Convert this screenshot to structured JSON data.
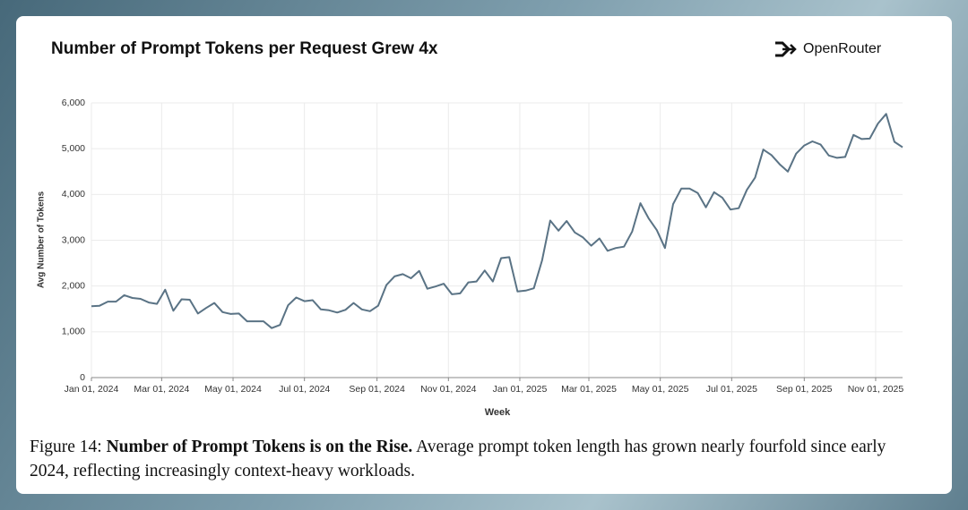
{
  "title": "Number of Prompt Tokens per Request Grew 4x",
  "brand": "OpenRouter",
  "chart_data": {
    "type": "line",
    "x_label": "Week",
    "y_label": "Avg Number of Tokens",
    "x": [
      "2024-01-01",
      "2024-01-08",
      "2024-01-15",
      "2024-01-22",
      "2024-01-29",
      "2024-02-05",
      "2024-02-12",
      "2024-02-19",
      "2024-02-26",
      "2024-03-04",
      "2024-03-11",
      "2024-03-18",
      "2024-03-25",
      "2024-04-01",
      "2024-04-08",
      "2024-04-15",
      "2024-04-22",
      "2024-04-29",
      "2024-05-06",
      "2024-05-13",
      "2024-05-20",
      "2024-05-27",
      "2024-06-03",
      "2024-06-10",
      "2024-06-17",
      "2024-06-24",
      "2024-07-01",
      "2024-07-08",
      "2024-07-15",
      "2024-07-22",
      "2024-07-29",
      "2024-08-05",
      "2024-08-12",
      "2024-08-19",
      "2024-08-26",
      "2024-09-02",
      "2024-09-09",
      "2024-09-16",
      "2024-09-23",
      "2024-09-30",
      "2024-10-07",
      "2024-10-14",
      "2024-10-21",
      "2024-10-28",
      "2024-11-04",
      "2024-11-11",
      "2024-11-18",
      "2024-11-25",
      "2024-12-02",
      "2024-12-09",
      "2024-12-16",
      "2024-12-23",
      "2024-12-30",
      "2025-01-06",
      "2025-01-13",
      "2025-01-20",
      "2025-01-27",
      "2025-02-03",
      "2025-02-10",
      "2025-02-17",
      "2025-02-24",
      "2025-03-03",
      "2025-03-10",
      "2025-03-17",
      "2025-03-24",
      "2025-03-31",
      "2025-04-07",
      "2025-04-14",
      "2025-04-21",
      "2025-04-28",
      "2025-05-05",
      "2025-05-12",
      "2025-05-19",
      "2025-05-26",
      "2025-06-02",
      "2025-06-09",
      "2025-06-16",
      "2025-06-23",
      "2025-06-30",
      "2025-07-07",
      "2025-07-14",
      "2025-07-21",
      "2025-07-28",
      "2025-08-04",
      "2025-08-11",
      "2025-08-18",
      "2025-08-25",
      "2025-09-01",
      "2025-09-08",
      "2025-09-15",
      "2025-09-22",
      "2025-09-29",
      "2025-10-06",
      "2025-10-13",
      "2025-10-20",
      "2025-10-27",
      "2025-11-03",
      "2025-11-10",
      "2025-11-17",
      "2025-11-24"
    ],
    "series": [
      {
        "name": "Avg Number of Tokens",
        "color": "#5a7385",
        "values": [
          1560,
          1570,
          1660,
          1660,
          1800,
          1740,
          1720,
          1640,
          1610,
          1920,
          1460,
          1710,
          1700,
          1400,
          1520,
          1630,
          1430,
          1390,
          1400,
          1230,
          1230,
          1230,
          1080,
          1150,
          1580,
          1750,
          1670,
          1690,
          1490,
          1470,
          1420,
          1480,
          1630,
          1490,
          1450,
          1570,
          2020,
          2210,
          2260,
          2170,
          2330,
          1940,
          1990,
          2050,
          1820,
          1840,
          2080,
          2100,
          2340,
          2100,
          2610,
          2630,
          1880,
          1900,
          1950,
          2560,
          3430,
          3210,
          3420,
          3170,
          3060,
          2880,
          3040,
          2770,
          2830,
          2860,
          3190,
          3810,
          3480,
          3220,
          2830,
          3790,
          4130,
          4130,
          4030,
          3720,
          4050,
          3930,
          3670,
          3700,
          4100,
          4370,
          4980,
          4860,
          4660,
          4500,
          4890,
          5070,
          5160,
          5090,
          4850,
          4800,
          4820,
          5300,
          5210,
          5220,
          5550,
          5760,
          5150,
          5030
        ]
      }
    ],
    "xlim": [
      "2024-01-01",
      "2025-11-24"
    ],
    "xticks": [
      {
        "value": "2024-01-01",
        "label": "Jan 01, 2024"
      },
      {
        "value": "2024-03-01",
        "label": "Mar 01, 2024"
      },
      {
        "value": "2024-05-01",
        "label": "May 01, 2024"
      },
      {
        "value": "2024-07-01",
        "label": "Jul 01, 2024"
      },
      {
        "value": "2024-09-01",
        "label": "Sep 01, 2024"
      },
      {
        "value": "2024-11-01",
        "label": "Nov 01, 2024"
      },
      {
        "value": "2025-01-01",
        "label": "Jan 01, 2025"
      },
      {
        "value": "2025-03-01",
        "label": "Mar 01, 2025"
      },
      {
        "value": "2025-05-01",
        "label": "May 01, 2025"
      },
      {
        "value": "2025-07-01",
        "label": "Jul 01, 2025"
      },
      {
        "value": "2025-09-01",
        "label": "Sep 01, 2025"
      },
      {
        "value": "2025-11-01",
        "label": "Nov 01, 2025"
      }
    ],
    "ylim": [
      0,
      6000
    ],
    "yticks": [
      0,
      {
        "value": 1000,
        "label": "1,000"
      },
      {
        "value": 2000,
        "label": "2,000"
      },
      {
        "value": 3000,
        "label": "3,000"
      },
      {
        "value": 4000,
        "label": "4,000"
      },
      {
        "value": 5000,
        "label": "5,000"
      },
      {
        "value": 6000,
        "label": "6,000"
      }
    ],
    "grid": true
  },
  "caption": {
    "label": "Figure 14:",
    "bold": "Number of Prompt Tokens is on the Rise.",
    "text": "Average prompt token length has grown nearly fourfold since early 2024, reflecting increasingly context-heavy workloads."
  }
}
